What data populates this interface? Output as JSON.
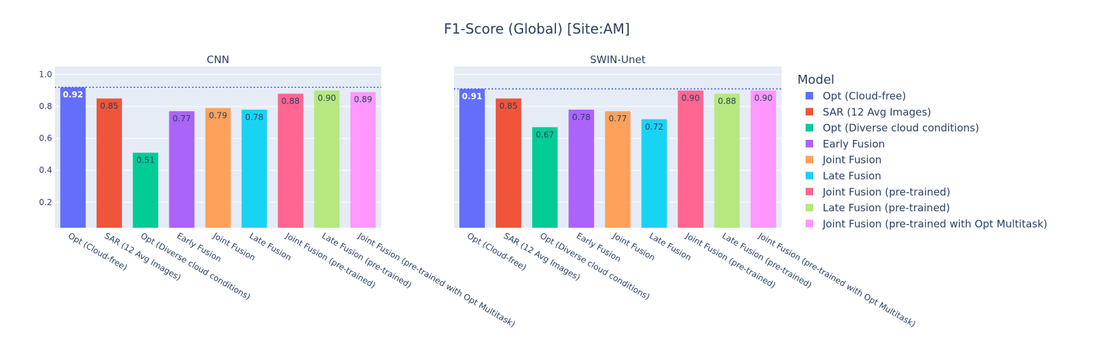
{
  "chart_data": {
    "type": "bar",
    "title": "F1-Score (Global) [Site:AM]",
    "legend_title": "Model",
    "legend_position": "right",
    "ylim": [
      0.04,
      1.05
    ],
    "yticks": [
      "0.2",
      "0.4",
      "0.6",
      "0.8",
      "1.0"
    ],
    "ytick_values": [
      0.2,
      0.4,
      0.6,
      0.8,
      1.0
    ],
    "grid": true,
    "colors": [
      "#636efa",
      "#ef553b",
      "#00cc96",
      "#ab63fa",
      "#ffa15a",
      "#19d3f3",
      "#ff6692",
      "#b6e880",
      "#ff97ff"
    ],
    "categories": [
      "Opt (Cloud-free)",
      "SAR (12 Avg Images)",
      "Opt (Diverse cloud conditions)",
      "Early Fusion",
      "Joint Fusion",
      "Late Fusion",
      "Joint Fusion (pre-trained)",
      "Late Fusion (pre-trained)",
      "Joint Fusion (pre-trained with Opt Multitask)"
    ],
    "panels": [
      {
        "subtitle": "CNN",
        "values": [
          0.92,
          0.85,
          0.51,
          0.77,
          0.79,
          0.78,
          0.88,
          0.9,
          0.89
        ],
        "labels": [
          "0.92",
          "0.85",
          "0.51",
          "0.77",
          "0.79",
          "0.78",
          "0.88",
          "0.90",
          "0.89"
        ],
        "reference_line": 0.92
      },
      {
        "subtitle": "SWIN-Unet",
        "values": [
          0.91,
          0.85,
          0.67,
          0.78,
          0.77,
          0.72,
          0.9,
          0.88,
          0.9
        ],
        "labels": [
          "0.91",
          "0.85",
          "0.67",
          "0.78",
          "0.77",
          "0.72",
          "0.90",
          "0.88",
          "0.90"
        ],
        "reference_line": 0.91
      }
    ]
  }
}
